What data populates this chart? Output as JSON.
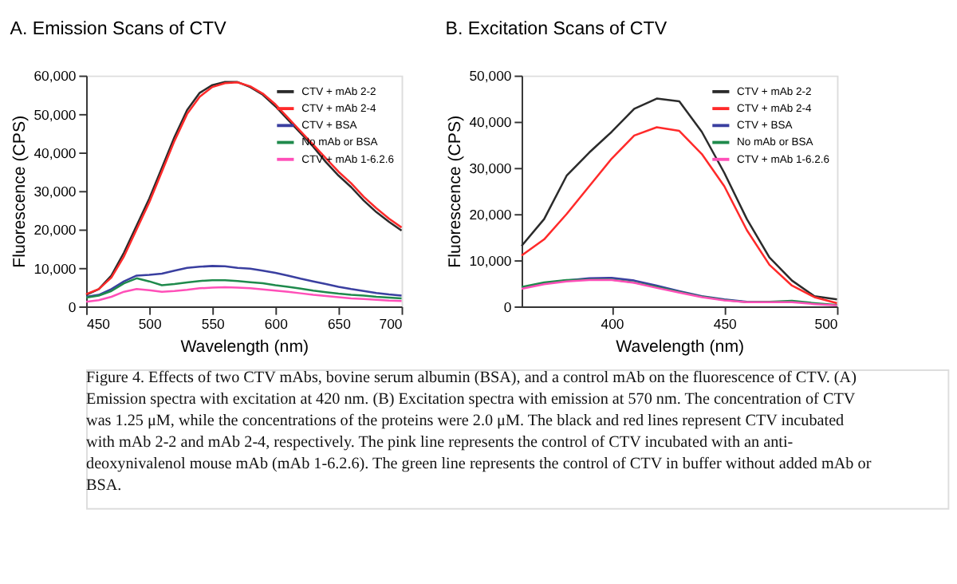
{
  "chart_data": [
    {
      "type": "line",
      "title": "A. Emission Scans of CTV",
      "xlabel": "Wavelength (nm)",
      "ylabel": "Fluorescence (CPS)",
      "xlim": [
        450,
        700
      ],
      "xticks": [
        450,
        500,
        550,
        600,
        650,
        700
      ],
      "ylim": [
        0,
        60000
      ],
      "yticks": [
        0,
        {
          "value": 10000,
          "label": "10,000"
        },
        {
          "value": 20000,
          "label": "20,000"
        },
        {
          "value": 30000,
          "label": "30,000"
        },
        {
          "value": 40000,
          "label": "40,000"
        },
        {
          "value": 50000,
          "label": "50,000"
        },
        {
          "value": 60000,
          "label": "60,000"
        }
      ],
      "grid": false,
      "legend": "top right",
      "marker": "none",
      "line_style": "solid",
      "x": [
        450,
        460,
        470,
        480,
        490,
        500,
        510,
        520,
        530,
        540,
        550,
        560,
        570,
        580,
        590,
        600,
        610,
        620,
        630,
        640,
        650,
        660,
        670,
        680,
        690,
        700
      ],
      "series": [
        {
          "name": "CTV + mAb 2-2",
          "color": "#2b2b2b",
          "values": [
            3000,
            4500,
            8000,
            14000,
            21000,
            28000,
            36000,
            44000,
            51000,
            55500,
            57500,
            58300,
            58300,
            57000,
            55000,
            52000,
            48500,
            45000,
            41500,
            37500,
            34000,
            31000,
            27500,
            24500,
            22000,
            19700
          ]
        },
        {
          "name": "CTV + mAb 2-4",
          "color": "#ff2a2a",
          "values": [
            3200,
            4500,
            7500,
            13000,
            20000,
            27000,
            35000,
            43000,
            50000,
            54500,
            57000,
            58000,
            58200,
            57200,
            55300,
            52500,
            49000,
            45500,
            42000,
            38500,
            35000,
            32000,
            28500,
            25500,
            22800,
            20500
          ]
        },
        {
          "name": "CTV + BSA",
          "color": "#3a3fa0",
          "values": [
            2500,
            3000,
            4500,
            6500,
            8000,
            8200,
            8500,
            9300,
            10000,
            10300,
            10500,
            10400,
            10000,
            9800,
            9300,
            8700,
            8000,
            7200,
            6500,
            5800,
            5100,
            4500,
            4000,
            3500,
            3100,
            2800
          ]
        },
        {
          "name": "No mAb or BSA",
          "color": "#1f8a4c",
          "values": [
            2300,
            2800,
            4000,
            6000,
            7300,
            6500,
            5500,
            5800,
            6200,
            6600,
            6800,
            6800,
            6600,
            6300,
            6000,
            5500,
            5100,
            4600,
            4100,
            3700,
            3300,
            3000,
            2800,
            2500,
            2300,
            2100
          ]
        },
        {
          "name": "CTV + mAb 1-6.2.6",
          "color": "#ff4fb8",
          "values": [
            1200,
            1600,
            2500,
            3800,
            4500,
            4200,
            3800,
            4000,
            4300,
            4700,
            4900,
            5000,
            4900,
            4700,
            4400,
            4100,
            3800,
            3400,
            3000,
            2700,
            2400,
            2100,
            1900,
            1700,
            1500,
            1400
          ]
        }
      ]
    },
    {
      "type": "line",
      "title": "B. Excitation Scans of CTV",
      "xlabel": "Wavelength (nm)",
      "ylabel": "Fluorescence (CPS)",
      "xlim": [
        360,
        500
      ],
      "xticks": [
        400,
        450,
        500
      ],
      "ylim": [
        0,
        50000
      ],
      "yticks": [
        0,
        {
          "value": 10000,
          "label": "10,000"
        },
        {
          "value": 20000,
          "label": "20,000"
        },
        {
          "value": 30000,
          "label": "30,000"
        },
        {
          "value": 40000,
          "label": "40,000"
        },
        {
          "value": 50000,
          "label": "50,000"
        }
      ],
      "grid": false,
      "legend": "top right",
      "marker": "none",
      "line_style": "solid",
      "x": [
        360,
        370,
        380,
        390,
        400,
        410,
        420,
        430,
        440,
        450,
        460,
        470,
        480,
        490,
        500
      ],
      "series": [
        {
          "name": "CTV + mAb 2-2",
          "color": "#2b2b2b",
          "values": [
            13100,
            18900,
            28300,
            33300,
            37800,
            42800,
            45000,
            44400,
            37800,
            28900,
            18900,
            10600,
            5600,
            2200,
            1500
          ]
        },
        {
          "name": "CTV + mAb 2-4",
          "color": "#ff2a2a",
          "values": [
            11000,
            14500,
            20000,
            26000,
            32000,
            37000,
            38800,
            38000,
            33000,
            26000,
            16500,
            9000,
            4500,
            2000,
            700
          ]
        },
        {
          "name": "CTV + BSA",
          "color": "#3a3fa0",
          "values": [
            4000,
            5000,
            5600,
            6100,
            6200,
            5600,
            4500,
            3300,
            2200,
            1500,
            1000,
            900,
            null,
            null,
            null
          ]
        },
        {
          "name": "No mAb or BSA",
          "color": "#1f8a4c",
          "values": [
            4200,
            5200,
            5700,
            5800,
            5800,
            5200,
            4200,
            3100,
            2100,
            1400,
            900,
            1000,
            1200,
            700,
            300
          ]
        },
        {
          "name": "CTV + mAb 1-6.2.6",
          "color": "#ff4fb8",
          "values": [
            3800,
            4800,
            5400,
            5700,
            5700,
            5100,
            4000,
            3000,
            2000,
            1300,
            900,
            900,
            900,
            500,
            200
          ]
        }
      ],
      "annotations": [
        "Figure 4. Effects of two CTV mAbs, bovine serum albumin (BSA), and a control mAb on the fluorescence of CTV. (A) Emission spectra with excitation at 420 nm. (B) Excitation spectra with emission at 570 nm. The concentration of CTV was 1.25 μM, while the concentrations of the proteins were 2.0 μM. The black and red lines represent CTV incubated with mAb 2-2 and mAb 2-4, respectively. The pink line represents the control of CTV incubated with an anti-deoxynivalenol mouse mAb (mAb 1-6.2.6). The green line represents the control of CTV in buffer without added mAb or BSA."
      ]
    }
  ]
}
